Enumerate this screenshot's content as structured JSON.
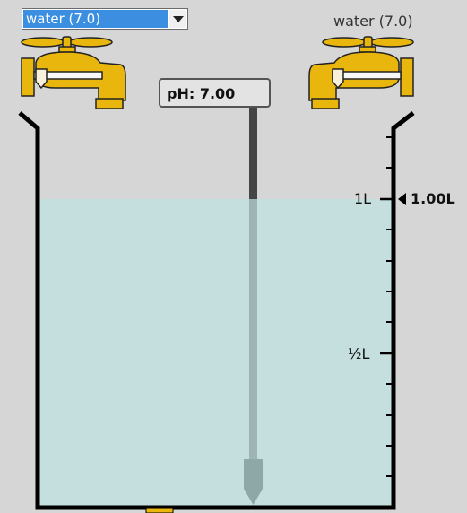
{
  "solution_selector": {
    "selected": "water (7.0)"
  },
  "right_faucet": {
    "label": "water (7.0)"
  },
  "ph_meter": {
    "label": "pH:",
    "value": "7.00",
    "display": "pH: 7.00"
  },
  "beaker": {
    "tick_labels": {
      "full": "1L",
      "half": "½L"
    },
    "volume_readout": "1.00L",
    "volume_liters": 1.0,
    "capacity_liters": 1.2
  },
  "colors": {
    "background": "#d6d6d6",
    "solution": "#c5dede",
    "faucet": "#e8b60c",
    "beaker_outline": "#000000",
    "probe": "#444444"
  }
}
